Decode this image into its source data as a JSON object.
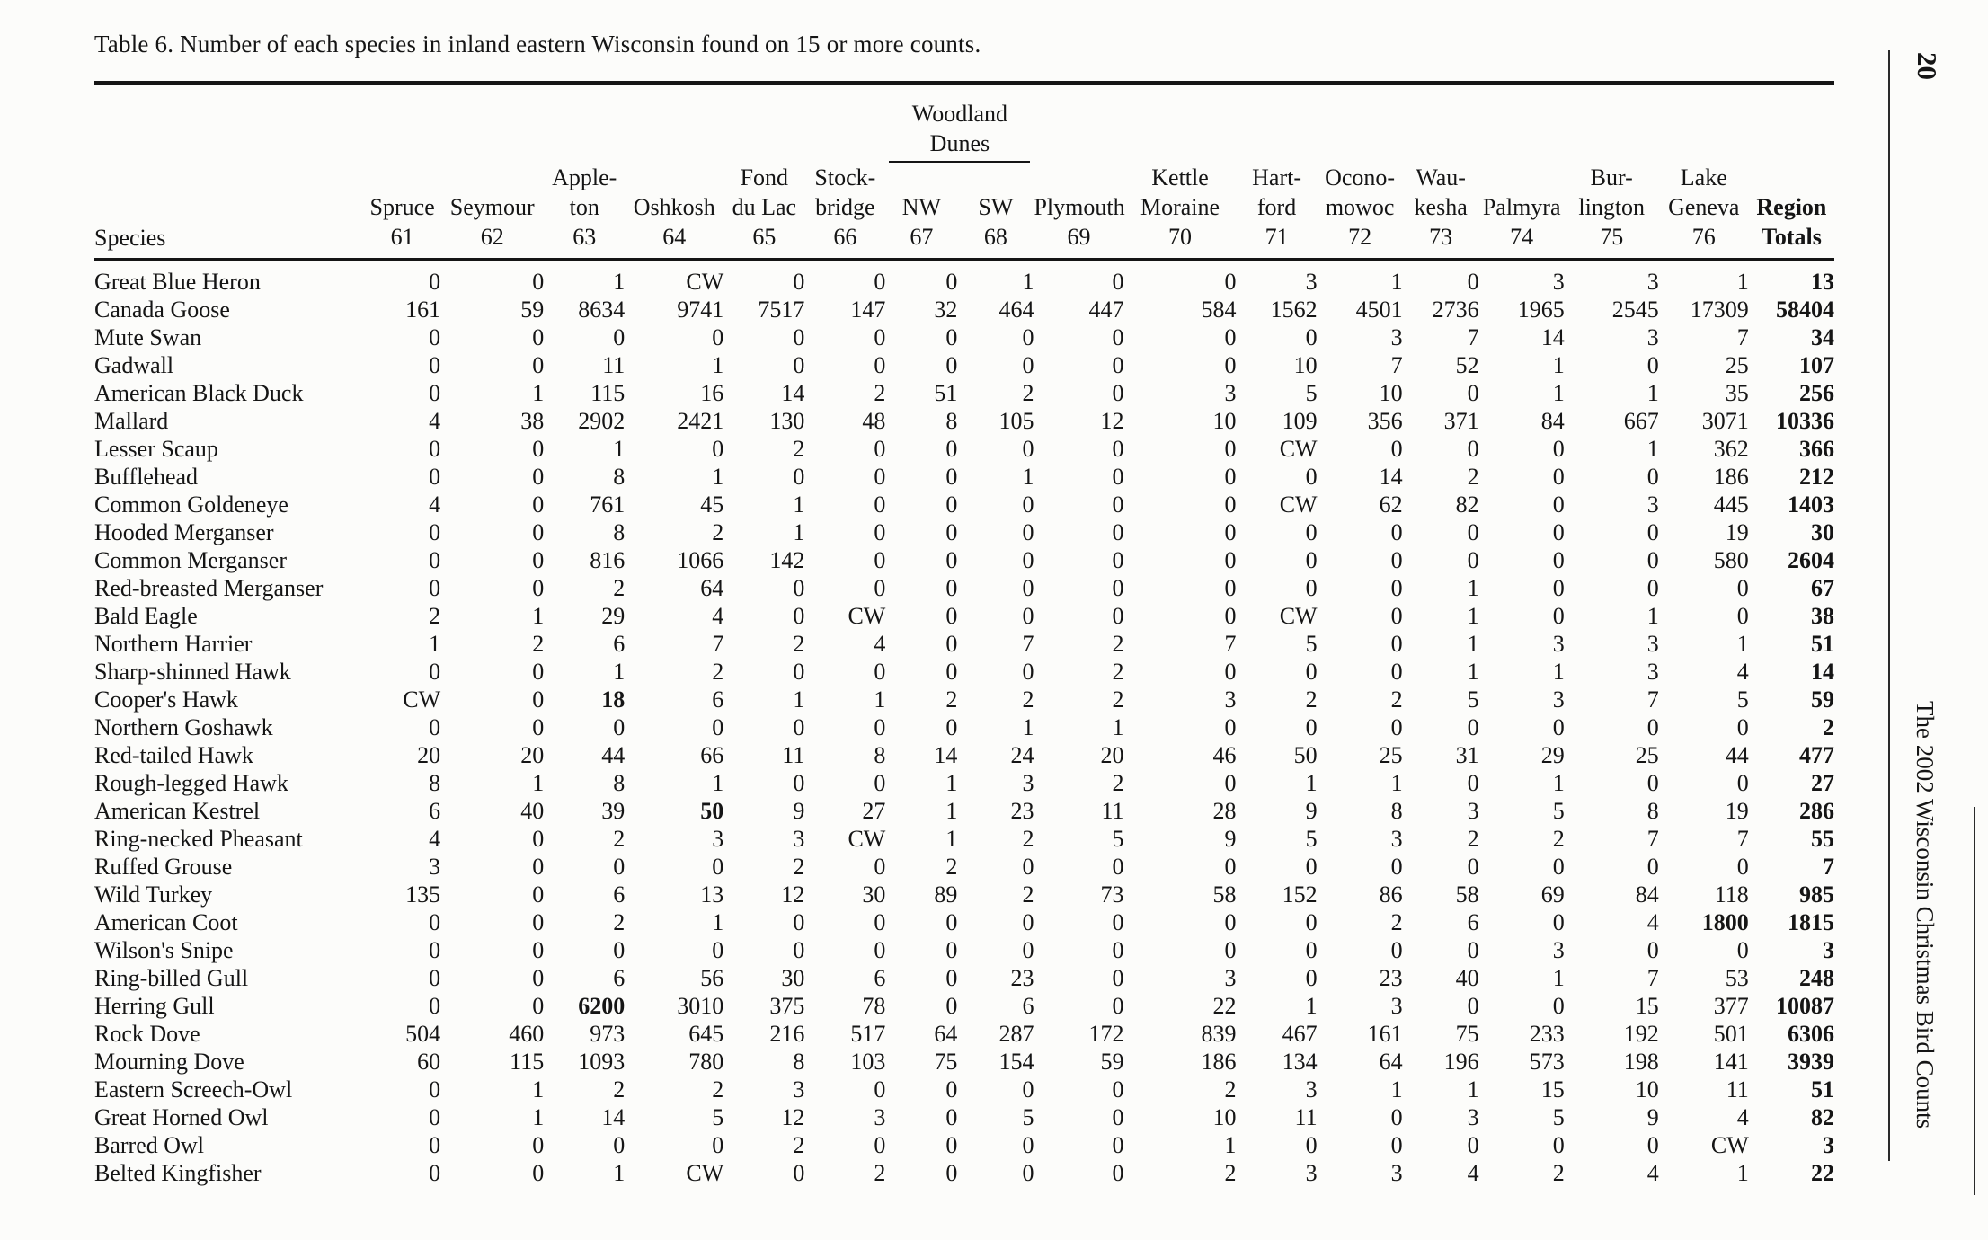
{
  "style": {
    "ink": "#151515",
    "paper": "#fcfcfa",
    "rule": "#2a2a2a"
  },
  "page": {
    "title": "Table 6. Number of each species in inland eastern Wisconsin found on 15 or more counts.",
    "page_number": "20",
    "side_caption": "The 2002 Wisconsin Christmas Bird Counts"
  },
  "table": {
    "species_header": "Species",
    "group_header": {
      "lines": [
        "Woodland",
        "Dunes"
      ],
      "start_index": 6,
      "span": 2
    },
    "columns": [
      {
        "name": [
          "Spruce"
        ],
        "number": "61"
      },
      {
        "name": [
          "Seymour"
        ],
        "number": "62"
      },
      {
        "name": [
          "Apple-",
          "ton"
        ],
        "number": "63"
      },
      {
        "name": [
          "Oshkosh"
        ],
        "number": "64"
      },
      {
        "name": [
          "Fond",
          "du Lac"
        ],
        "number": "65"
      },
      {
        "name": [
          "Stock-",
          "bridge"
        ],
        "number": "66"
      },
      {
        "name": [
          "NW"
        ],
        "number": "67"
      },
      {
        "name": [
          "SW"
        ],
        "number": "68"
      },
      {
        "name": [
          "Plymouth"
        ],
        "number": "69"
      },
      {
        "name": [
          "Kettle",
          "Moraine"
        ],
        "number": "70"
      },
      {
        "name": [
          "Hart-",
          "ford"
        ],
        "number": "71"
      },
      {
        "name": [
          "Ocono-",
          "mowoc"
        ],
        "number": "72"
      },
      {
        "name": [
          "Wau-",
          "kesha"
        ],
        "number": "73"
      },
      {
        "name": [
          "Palmyra"
        ],
        "number": "74"
      },
      {
        "name": [
          "Bur-",
          "lington"
        ],
        "number": "75"
      },
      {
        "name": [
          "Lake",
          "Geneva"
        ],
        "number": "76"
      }
    ],
    "totals_header": {
      "name": "Region",
      "number": "Totals"
    },
    "rows": [
      {
        "species": "Great Blue Heron",
        "counts": [
          "0",
          "0",
          "1",
          "CW",
          "0",
          "0",
          "0",
          "1",
          "0",
          "0",
          "3",
          "1",
          "0",
          "3",
          "3",
          "1"
        ],
        "total": "13",
        "bold": []
      },
      {
        "species": "Canada Goose",
        "counts": [
          "161",
          "59",
          "8634",
          "9741",
          "7517",
          "147",
          "32",
          "464",
          "447",
          "584",
          "1562",
          "4501",
          "2736",
          "1965",
          "2545",
          "17309"
        ],
        "total": "58404",
        "bold": []
      },
      {
        "species": "Mute Swan",
        "counts": [
          "0",
          "0",
          "0",
          "0",
          "0",
          "0",
          "0",
          "0",
          "0",
          "0",
          "0",
          "3",
          "7",
          "14",
          "3",
          "7"
        ],
        "total": "34",
        "bold": []
      },
      {
        "species": "Gadwall",
        "counts": [
          "0",
          "0",
          "11",
          "1",
          "0",
          "0",
          "0",
          "0",
          "0",
          "0",
          "10",
          "7",
          "52",
          "1",
          "0",
          "25"
        ],
        "total": "107",
        "bold": []
      },
      {
        "species": "American Black Duck",
        "counts": [
          "0",
          "1",
          "115",
          "16",
          "14",
          "2",
          "51",
          "2",
          "0",
          "3",
          "5",
          "10",
          "0",
          "1",
          "1",
          "35"
        ],
        "total": "256",
        "bold": []
      },
      {
        "species": "Mallard",
        "counts": [
          "4",
          "38",
          "2902",
          "2421",
          "130",
          "48",
          "8",
          "105",
          "12",
          "10",
          "109",
          "356",
          "371",
          "84",
          "667",
          "3071"
        ],
        "total": "10336",
        "bold": []
      },
      {
        "species": "Lesser Scaup",
        "counts": [
          "0",
          "0",
          "1",
          "0",
          "2",
          "0",
          "0",
          "0",
          "0",
          "0",
          "CW",
          "0",
          "0",
          "0",
          "1",
          "362"
        ],
        "total": "366",
        "bold": []
      },
      {
        "species": "Bufflehead",
        "counts": [
          "0",
          "0",
          "8",
          "1",
          "0",
          "0",
          "0",
          "1",
          "0",
          "0",
          "0",
          "14",
          "2",
          "0",
          "0",
          "186"
        ],
        "total": "212",
        "bold": []
      },
      {
        "species": "Common Goldeneye",
        "counts": [
          "4",
          "0",
          "761",
          "45",
          "1",
          "0",
          "0",
          "0",
          "0",
          "0",
          "CW",
          "62",
          "82",
          "0",
          "3",
          "445"
        ],
        "total": "1403",
        "bold": []
      },
      {
        "species": "Hooded Merganser",
        "counts": [
          "0",
          "0",
          "8",
          "2",
          "1",
          "0",
          "0",
          "0",
          "0",
          "0",
          "0",
          "0",
          "0",
          "0",
          "0",
          "19"
        ],
        "total": "30",
        "bold": []
      },
      {
        "species": "Common Merganser",
        "counts": [
          "0",
          "0",
          "816",
          "1066",
          "142",
          "0",
          "0",
          "0",
          "0",
          "0",
          "0",
          "0",
          "0",
          "0",
          "0",
          "580"
        ],
        "total": "2604",
        "bold": []
      },
      {
        "species": "Red-breasted Merganser",
        "counts": [
          "0",
          "0",
          "2",
          "64",
          "0",
          "0",
          "0",
          "0",
          "0",
          "0",
          "0",
          "0",
          "1",
          "0",
          "0",
          "0"
        ],
        "total": "67",
        "bold": []
      },
      {
        "species": "Bald Eagle",
        "counts": [
          "2",
          "1",
          "29",
          "4",
          "0",
          "CW",
          "0",
          "0",
          "0",
          "0",
          "CW",
          "0",
          "1",
          "0",
          "1",
          "0"
        ],
        "total": "38",
        "bold": []
      },
      {
        "species": "Northern Harrier",
        "counts": [
          "1",
          "2",
          "6",
          "7",
          "2",
          "4",
          "0",
          "7",
          "2",
          "7",
          "5",
          "0",
          "1",
          "3",
          "3",
          "1"
        ],
        "total": "51",
        "bold": []
      },
      {
        "species": "Sharp-shinned Hawk",
        "counts": [
          "0",
          "0",
          "1",
          "2",
          "0",
          "0",
          "0",
          "0",
          "2",
          "0",
          "0",
          "0",
          "1",
          "1",
          "3",
          "4"
        ],
        "total": "14",
        "bold": []
      },
      {
        "species": "Cooper's Hawk",
        "counts": [
          "CW",
          "0",
          "18",
          "6",
          "1",
          "1",
          "2",
          "2",
          "2",
          "3",
          "2",
          "2",
          "5",
          "3",
          "7",
          "5"
        ],
        "total": "59",
        "bold": [
          2
        ]
      },
      {
        "species": "Northern Goshawk",
        "counts": [
          "0",
          "0",
          "0",
          "0",
          "0",
          "0",
          "0",
          "1",
          "1",
          "0",
          "0",
          "0",
          "0",
          "0",
          "0",
          "0"
        ],
        "total": "2",
        "bold": []
      },
      {
        "species": "Red-tailed Hawk",
        "counts": [
          "20",
          "20",
          "44",
          "66",
          "11",
          "8",
          "14",
          "24",
          "20",
          "46",
          "50",
          "25",
          "31",
          "29",
          "25",
          "44"
        ],
        "total": "477",
        "bold": []
      },
      {
        "species": "Rough-legged Hawk",
        "counts": [
          "8",
          "1",
          "8",
          "1",
          "0",
          "0",
          "1",
          "3",
          "2",
          "0",
          "1",
          "1",
          "0",
          "1",
          "0",
          "0"
        ],
        "total": "27",
        "bold": []
      },
      {
        "species": "American Kestrel",
        "counts": [
          "6",
          "40",
          "39",
          "50",
          "9",
          "27",
          "1",
          "23",
          "11",
          "28",
          "9",
          "8",
          "3",
          "5",
          "8",
          "19"
        ],
        "total": "286",
        "bold": [
          3
        ]
      },
      {
        "species": "Ring-necked Pheasant",
        "counts": [
          "4",
          "0",
          "2",
          "3",
          "3",
          "CW",
          "1",
          "2",
          "5",
          "9",
          "5",
          "3",
          "2",
          "2",
          "7",
          "7"
        ],
        "total": "55",
        "bold": []
      },
      {
        "species": "Ruffed Grouse",
        "counts": [
          "3",
          "0",
          "0",
          "0",
          "2",
          "0",
          "2",
          "0",
          "0",
          "0",
          "0",
          "0",
          "0",
          "0",
          "0",
          "0"
        ],
        "total": "7",
        "bold": []
      },
      {
        "species": "Wild Turkey",
        "counts": [
          "135",
          "0",
          "6",
          "13",
          "12",
          "30",
          "89",
          "2",
          "73",
          "58",
          "152",
          "86",
          "58",
          "69",
          "84",
          "118"
        ],
        "total": "985",
        "bold": []
      },
      {
        "species": "American Coot",
        "counts": [
          "0",
          "0",
          "2",
          "1",
          "0",
          "0",
          "0",
          "0",
          "0",
          "0",
          "0",
          "2",
          "6",
          "0",
          "4",
          "1800"
        ],
        "total": "1815",
        "bold": [
          15
        ]
      },
      {
        "species": "Wilson's Snipe",
        "counts": [
          "0",
          "0",
          "0",
          "0",
          "0",
          "0",
          "0",
          "0",
          "0",
          "0",
          "0",
          "0",
          "0",
          "3",
          "0",
          "0"
        ],
        "total": "3",
        "bold": []
      },
      {
        "species": "Ring-billed Gull",
        "counts": [
          "0",
          "0",
          "6",
          "56",
          "30",
          "6",
          "0",
          "23",
          "0",
          "3",
          "0",
          "23",
          "40",
          "1",
          "7",
          "53"
        ],
        "total": "248",
        "bold": []
      },
      {
        "species": "Herring Gull",
        "counts": [
          "0",
          "0",
          "6200",
          "3010",
          "375",
          "78",
          "0",
          "6",
          "0",
          "22",
          "1",
          "3",
          "0",
          "0",
          "15",
          "377"
        ],
        "total": "10087",
        "bold": [
          2
        ]
      },
      {
        "species": "Rock Dove",
        "counts": [
          "504",
          "460",
          "973",
          "645",
          "216",
          "517",
          "64",
          "287",
          "172",
          "839",
          "467",
          "161",
          "75",
          "233",
          "192",
          "501"
        ],
        "total": "6306",
        "bold": []
      },
      {
        "species": "Mourning Dove",
        "counts": [
          "60",
          "115",
          "1093",
          "780",
          "8",
          "103",
          "75",
          "154",
          "59",
          "186",
          "134",
          "64",
          "196",
          "573",
          "198",
          "141"
        ],
        "total": "3939",
        "bold": []
      },
      {
        "species": "Eastern Screech-Owl",
        "counts": [
          "0",
          "1",
          "2",
          "2",
          "3",
          "0",
          "0",
          "0",
          "0",
          "2",
          "3",
          "1",
          "1",
          "15",
          "10",
          "11"
        ],
        "total": "51",
        "bold": []
      },
      {
        "species": "Great Horned Owl",
        "counts": [
          "0",
          "1",
          "14",
          "5",
          "12",
          "3",
          "0",
          "5",
          "0",
          "10",
          "11",
          "0",
          "3",
          "5",
          "9",
          "4"
        ],
        "total": "82",
        "bold": []
      },
      {
        "species": "Barred Owl",
        "counts": [
          "0",
          "0",
          "0",
          "0",
          "2",
          "0",
          "0",
          "0",
          "0",
          "1",
          "0",
          "0",
          "0",
          "0",
          "0",
          "CW"
        ],
        "total": "3",
        "bold": []
      },
      {
        "species": "Belted Kingfisher",
        "counts": [
          "0",
          "0",
          "1",
          "CW",
          "0",
          "2",
          "0",
          "0",
          "0",
          "2",
          "3",
          "3",
          "4",
          "2",
          "4",
          "1"
        ],
        "total": "22",
        "bold": []
      }
    ]
  }
}
